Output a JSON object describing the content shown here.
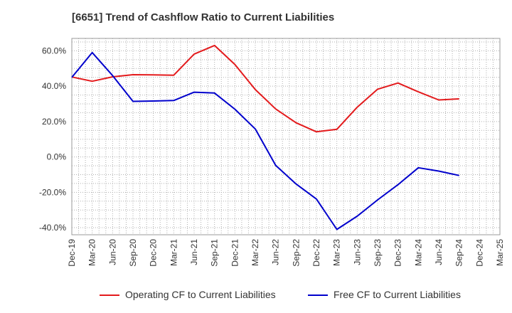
{
  "chart_data": {
    "type": "line",
    "title": "[6651]  Trend of Cashflow Ratio to Current Liabilities",
    "x": [
      "Dec-19",
      "Mar-20",
      "Jun-20",
      "Sep-20",
      "Dec-20",
      "Mar-21",
      "Jun-21",
      "Sep-21",
      "Dec-21",
      "Mar-22",
      "Jun-22",
      "Sep-22",
      "Dec-22",
      "Mar-23",
      "Jun-23",
      "Sep-23",
      "Dec-23",
      "Mar-24",
      "Jun-24",
      "Sep-24",
      "Dec-24",
      "Mar-25"
    ],
    "yticks": [
      "60.0%",
      "40.0%",
      "20.0%",
      "0.0%",
      "-20.0%",
      "-40.0%"
    ],
    "ylim": [
      -44,
      67
    ],
    "grid": true,
    "legend_position": "bottom",
    "series": [
      {
        "name": "Operating CF to Current Liabilities",
        "color": "#e31a1c",
        "values": [
          45.2,
          42.8,
          45.3,
          46.5,
          46.4,
          46.2,
          58.1,
          63.0,
          52.3,
          38.1,
          27.1,
          19.3,
          14.2,
          15.6,
          28.1,
          38.3,
          41.8,
          36.8,
          32.2,
          32.8,
          null,
          null
        ]
      },
      {
        "name": "Free CF to Current Liabilities",
        "color": "#0000cc",
        "values": [
          45.0,
          59.0,
          46.0,
          31.4,
          31.6,
          31.9,
          36.6,
          36.1,
          27.0,
          15.8,
          -4.8,
          -15.3,
          -23.8,
          -41.0,
          -33.5,
          -24.3,
          -15.7,
          -6.1,
          -8.0,
          -10.5,
          null,
          null
        ]
      }
    ]
  }
}
